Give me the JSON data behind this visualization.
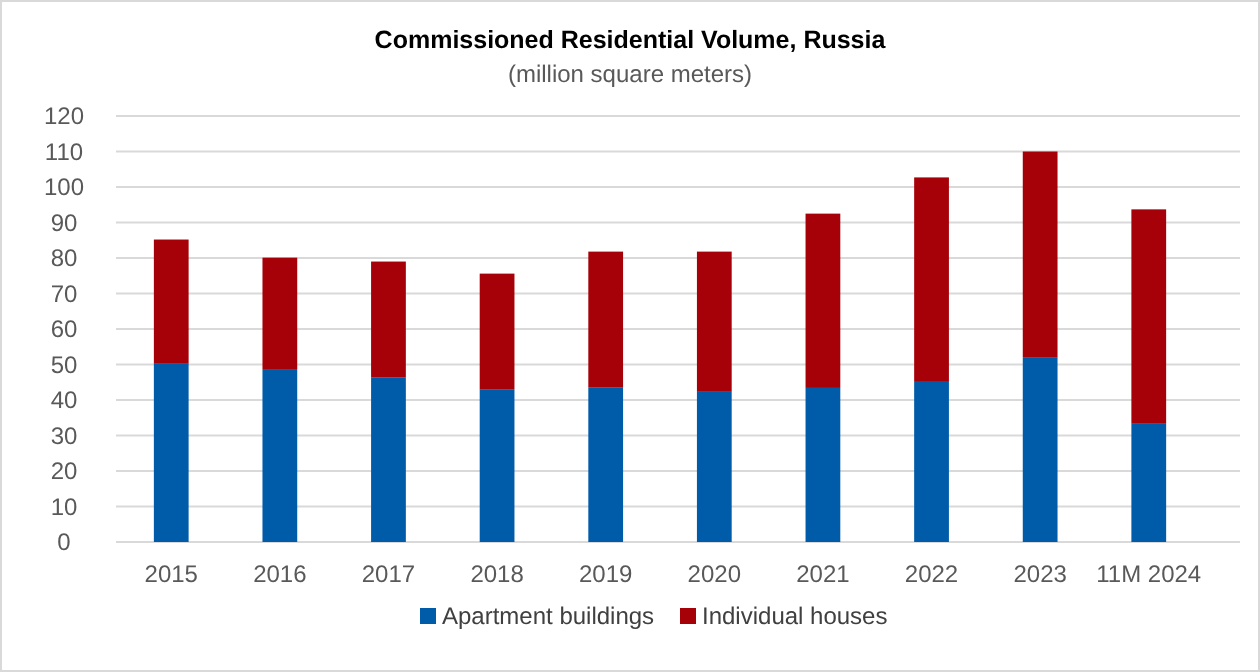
{
  "chart_data": {
    "type": "bar",
    "title": "Commissioned Residential Volume, Russia",
    "subtitle": "(million square  meters)",
    "categories": [
      "2015",
      "2016",
      "2017",
      "2018",
      "2019",
      "2020",
      "2021",
      "2022",
      "2023",
      "11M 2024"
    ],
    "series": [
      {
        "name": "Apartment buildings",
        "color": "#005ca8",
        "values": [
          50.2,
          48.5,
          46.3,
          42.9,
          43.6,
          42.3,
          43.4,
          45.1,
          51.9,
          33.3
        ]
      },
      {
        "name": "Individual houses",
        "color": "#a60008",
        "values": [
          35.0,
          31.6,
          32.7,
          32.7,
          38.2,
          39.5,
          49.1,
          57.6,
          58.1,
          60.4
        ]
      }
    ],
    "stacked": true,
    "ylim": [
      0,
      120
    ],
    "yticks": [
      0,
      10,
      20,
      30,
      40,
      50,
      60,
      70,
      80,
      90,
      100,
      110,
      120
    ],
    "grid": "y",
    "legend": "bottom"
  }
}
